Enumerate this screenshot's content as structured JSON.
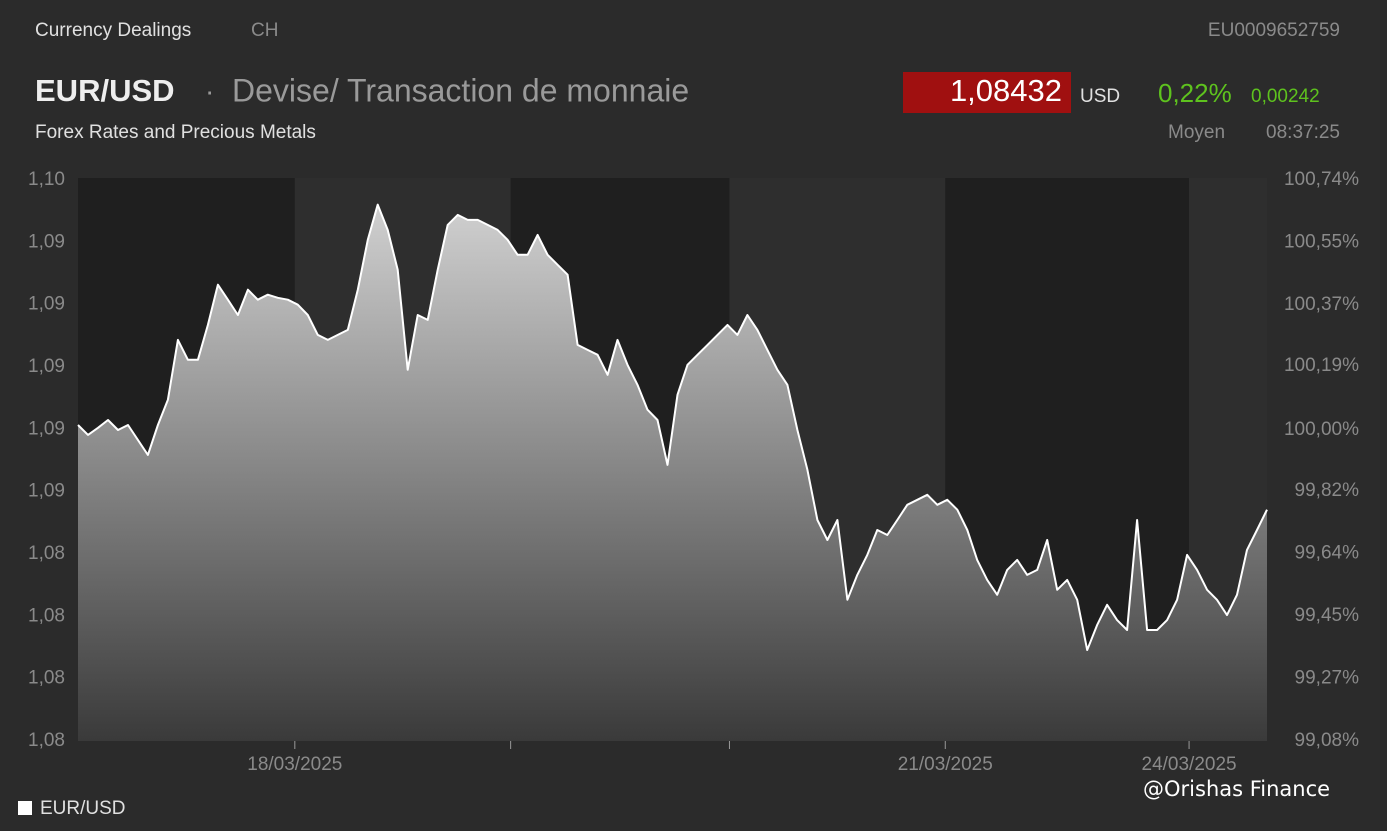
{
  "header": {
    "section": "Currency Dealings",
    "country": "CH",
    "isin": "EU0009652759",
    "pair": "EUR/USD",
    "separator": "·",
    "description": "Devise/ Transaction de monnaie",
    "price": "1,08432",
    "currency": "USD",
    "change_percent": "0,22%",
    "change_abs": "0,00242",
    "market": "Forex Rates and Precious Metals",
    "price_type": "Moyen",
    "time": "08:37:25"
  },
  "watermark": "@Orishas Finance",
  "chart_data": {
    "type": "area",
    "x": [
      0,
      1,
      2,
      3,
      4,
      5,
      6,
      7,
      8,
      9,
      10,
      11,
      12,
      13,
      14,
      15,
      16,
      17,
      18,
      19,
      20,
      21,
      22,
      23,
      24,
      25,
      26,
      27,
      28,
      29,
      30,
      31,
      32,
      33,
      34,
      35,
      36,
      37,
      38,
      39,
      40,
      41,
      42,
      43,
      44,
      45,
      46,
      47,
      48,
      49,
      50,
      51,
      52,
      53,
      54,
      55,
      56,
      57,
      58,
      59,
      60,
      61,
      62,
      63,
      64,
      65,
      66,
      67,
      68,
      69,
      70,
      71,
      72,
      73,
      74,
      75,
      76,
      77,
      78,
      79,
      80,
      81,
      82,
      83,
      84,
      85,
      86,
      87,
      88,
      89,
      90,
      91,
      92,
      93,
      94,
      95,
      96,
      97,
      98,
      99,
      100,
      101,
      102,
      103,
      104,
      105,
      106,
      107,
      108,
      109,
      110,
      111,
      112,
      113,
      114,
      115,
      116,
      117,
      118,
      119
    ],
    "series": [
      {
        "name": "EUR/USD",
        "color": "#ffffff",
        "values": [
          1.08734,
          1.08702,
          1.08725,
          1.0875,
          1.08718,
          1.08734,
          1.08686,
          1.08638,
          1.08734,
          1.08815,
          1.09007,
          1.08943,
          1.08943,
          1.09055,
          1.09184,
          1.09136,
          1.09087,
          1.09168,
          1.09136,
          1.09152,
          1.09142,
          1.09136,
          1.0912,
          1.09087,
          1.09023,
          1.09007,
          1.09023,
          1.09039,
          1.09168,
          1.09328,
          1.09441,
          1.0936,
          1.09232,
          1.08911,
          1.09087,
          1.09071,
          1.09232,
          1.09376,
          1.09408,
          1.09392,
          1.09392,
          1.09376,
          1.0936,
          1.09328,
          1.0928,
          1.0928,
          1.09344,
          1.0928,
          1.09248,
          1.09216,
          1.08991,
          1.08975,
          1.08959,
          1.08895,
          1.09007,
          1.08927,
          1.08863,
          1.08783,
          1.0875,
          1.08606,
          1.08831,
          1.08927,
          1.08959,
          1.08991,
          1.09023,
          1.09055,
          1.09023,
          1.09087,
          1.09039,
          1.08975,
          1.08911,
          1.08863,
          1.08718,
          1.0859,
          1.08429,
          1.08365,
          1.08429,
          1.08173,
          1.08253,
          1.08317,
          1.08397,
          1.08381,
          1.08429,
          1.08478,
          1.08494,
          1.0851,
          1.08478,
          1.08494,
          1.08462,
          1.08397,
          1.08301,
          1.08237,
          1.08189,
          1.08269,
          1.08301,
          1.08253,
          1.08269,
          1.08365,
          1.08205,
          1.08237,
          1.08173,
          1.08012,
          1.08092,
          1.08157,
          1.08108,
          1.08076,
          1.08429,
          1.08076,
          1.08076,
          1.08108,
          1.08173,
          1.08317,
          1.08269,
          1.08205,
          1.08173,
          1.08124,
          1.08189,
          1.08333,
          1.08397,
          1.08462
        ]
      }
    ],
    "xlim": [
      0,
      119
    ],
    "xticks": [
      {
        "value": 21.7,
        "label": "18/03/2025"
      },
      {
        "value": 43.3,
        "label": null
      },
      {
        "value": 65.2,
        "label": null
      },
      {
        "value": 86.8,
        "label": "21/03/2025"
      },
      {
        "value": 111.2,
        "label": "24/03/2025"
      }
    ],
    "ylim": [
      1.0772,
      1.0952
    ],
    "yticks": [
      {
        "value": 1.0772,
        "label": "1,08"
      },
      {
        "value": 1.0792,
        "label": "1,08"
      },
      {
        "value": 1.0812,
        "label": "1,08"
      },
      {
        "value": 1.0832,
        "label": "1,08"
      },
      {
        "value": 1.0852,
        "label": "1,09"
      },
      {
        "value": 1.0872,
        "label": "1,09"
      },
      {
        "value": 1.0892,
        "label": "1,09"
      },
      {
        "value": 1.0912,
        "label": "1,09"
      },
      {
        "value": 1.0932,
        "label": "1,09"
      },
      {
        "value": 1.0952,
        "label": "1,10"
      }
    ],
    "y2lim": [
      99.08,
      100.74
    ],
    "y2ticks": [
      {
        "value": 99.08,
        "label": "99,08%"
      },
      {
        "value": 99.265,
        "label": "99,27%"
      },
      {
        "value": 99.45,
        "label": "99,45%"
      },
      {
        "value": 99.635,
        "label": "99,64%"
      },
      {
        "value": 99.82,
        "label": "99,82%"
      },
      {
        "value": 100.0,
        "label": "100,00%"
      },
      {
        "value": 100.19,
        "label": "100,19%"
      },
      {
        "value": 100.37,
        "label": "100,37%"
      },
      {
        "value": 100.555,
        "label": "100,55%"
      },
      {
        "value": 100.74,
        "label": "100,74%"
      }
    ],
    "legend": "bottom-left"
  }
}
